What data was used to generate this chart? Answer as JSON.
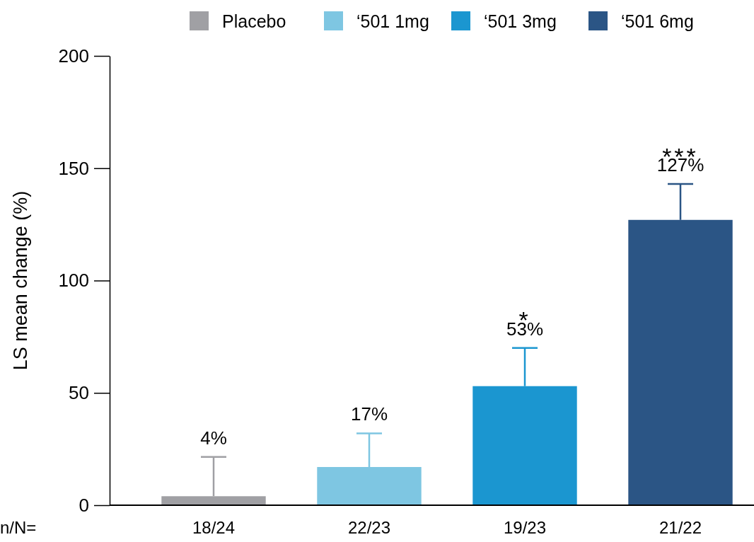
{
  "chart_data": {
    "type": "bar",
    "ylabel": "LS mean change (%)",
    "categories": [
      "18/24",
      "22/23",
      "19/23",
      "21/22"
    ],
    "legend": "top",
    "ylim": [
      0,
      200
    ],
    "yticks": [
      0,
      50,
      100,
      150,
      200
    ],
    "series": [
      {
        "name": "Placebo",
        "color": "#a0a0a4",
        "values": [
          4,
          null,
          null,
          null
        ],
        "errors": [
          [
            4,
            21.5
          ],
          null,
          null,
          null
        ],
        "value_labels": [
          "4%",
          null,
          null,
          null
        ]
      },
      {
        "name": "‘501 1mg",
        "color": "#7ec6e2",
        "values": [
          null,
          17,
          null,
          null
        ],
        "errors": [
          null,
          [
            17,
            32
          ],
          null,
          null
        ],
        "value_labels": [
          null,
          "17%",
          null,
          null
        ]
      },
      {
        "name": "‘501 3mg",
        "color": "#1b96d0",
        "values": [
          null,
          null,
          53,
          null
        ],
        "errors": [
          null,
          null,
          [
            53,
            70
          ],
          null
        ],
        "value_labels": [
          null,
          null,
          "53%",
          null
        ]
      },
      {
        "name": "‘501 6mg",
        "color": "#2b5585",
        "values": [
          null,
          null,
          null,
          127
        ],
        "errors": [
          null,
          null,
          null,
          [
            127,
            143
          ]
        ],
        "value_labels": [
          null,
          null,
          null,
          "127%"
        ]
      }
    ],
    "annotations": [
      "*",
      "***",
      "n/N="
    ]
  }
}
